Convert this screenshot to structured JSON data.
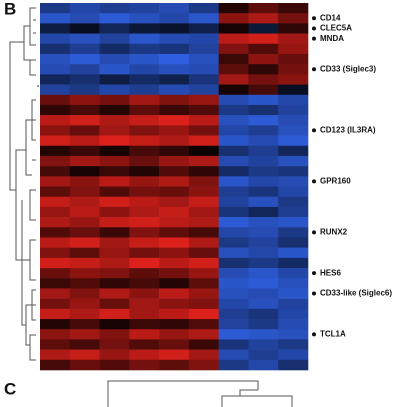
{
  "chart_data": {
    "type": "heatmap",
    "panel_labels": [
      "B",
      "C"
    ],
    "categories": [
      null,
      "CD14",
      "CLEC5A",
      "MNDA",
      null,
      null,
      "CD33 (Siglec3)",
      null,
      null,
      null,
      null,
      null,
      "CD123 (IL3RA)",
      null,
      null,
      null,
      null,
      "GPR160",
      null,
      null,
      null,
      null,
      "RUNX2",
      null,
      null,
      null,
      "HES6",
      null,
      "CD33-like (Siglec6)",
      null,
      null,
      null,
      "TCL1A",
      null,
      null,
      null
    ],
    "colorscale": [
      "#2f5fe0",
      "#000000",
      "#e8221c"
    ],
    "zlim": [
      -2,
      2
    ],
    "values": [
      [
        -1.2,
        -1.5,
        -1.3,
        -1.4,
        -1.6,
        -1.2,
        0.3,
        0.8,
        0.5
      ],
      [
        -1.8,
        -1.6,
        -1.9,
        -1.7,
        -1.5,
        -1.8,
        1.2,
        1.5,
        1.0
      ],
      [
        -0.6,
        -0.3,
        -0.8,
        -0.5,
        -0.4,
        -0.7,
        0.2,
        -0.5,
        0.4
      ],
      [
        -1.5,
        -1.7,
        -1.4,
        -1.8,
        -1.6,
        -1.5,
        1.6,
        1.8,
        1.4
      ],
      [
        -1.0,
        -1.3,
        -0.9,
        -1.2,
        -1.1,
        -1.4,
        1.1,
        0.7,
        1.3
      ],
      [
        -1.7,
        -1.9,
        -1.6,
        -1.8,
        -2.0,
        -1.7,
        0.5,
        1.2,
        0.9
      ],
      [
        -1.6,
        -1.4,
        -1.8,
        -1.5,
        -1.7,
        -1.6,
        0.8,
        0.4,
        1.0
      ],
      [
        -0.8,
        -1.0,
        -0.6,
        -0.9,
        -0.7,
        -1.1,
        1.4,
        1.0,
        1.2
      ],
      [
        -1.4,
        -1.2,
        -1.5,
        -1.3,
        -1.6,
        -1.4,
        0.2,
        0.6,
        -0.3
      ],
      [
        0.9,
        1.2,
        1.0,
        1.4,
        1.1,
        1.3,
        -1.6,
        -1.8,
        -1.5
      ],
      [
        0.4,
        0.6,
        0.3,
        0.8,
        0.5,
        0.7,
        -1.2,
        -1.0,
        -1.4
      ],
      [
        1.6,
        1.8,
        1.5,
        1.7,
        1.9,
        1.6,
        -1.7,
        -1.9,
        -1.6
      ],
      [
        1.2,
        0.9,
        1.4,
        1.1,
        1.3,
        1.0,
        -1.5,
        -1.3,
        -1.7
      ],
      [
        1.8,
        1.6,
        1.9,
        1.7,
        1.5,
        1.8,
        -1.8,
        -1.6,
        -1.9
      ],
      [
        0.3,
        0.5,
        0.2,
        0.6,
        0.4,
        0.1,
        -1.0,
        -1.3,
        -0.8
      ],
      [
        1.1,
        1.4,
        1.2,
        0.9,
        1.3,
        1.5,
        -1.6,
        -1.4,
        -1.7
      ],
      [
        0.6,
        0.2,
        0.5,
        0.3,
        0.7,
        0.4,
        -0.9,
        -1.2,
        -1.1
      ],
      [
        1.4,
        1.2,
        1.6,
        1.3,
        1.5,
        1.1,
        -1.8,
        -1.5,
        -1.6
      ],
      [
        0.8,
        1.1,
        0.7,
        1.0,
        0.9,
        1.2,
        -1.3,
        -1.1,
        -1.5
      ],
      [
        1.7,
        1.5,
        1.8,
        1.6,
        1.4,
        1.7,
        -1.4,
        -1.7,
        -1.2
      ],
      [
        1.3,
        1.6,
        1.2,
        1.5,
        1.7,
        1.4,
        -1.1,
        -0.8,
        -1.3
      ],
      [
        1.5,
        1.3,
        1.7,
        1.8,
        1.6,
        1.5,
        -1.9,
        -1.7,
        -1.8
      ],
      [
        0.7,
        0.9,
        0.5,
        1.1,
        0.8,
        0.6,
        -1.5,
        -1.6,
        -1.2
      ],
      [
        1.6,
        1.8,
        1.4,
        1.7,
        1.9,
        1.5,
        -1.2,
        -1.4,
        -1.0
      ],
      [
        1.1,
        0.8,
        1.3,
        1.0,
        1.2,
        0.9,
        -1.7,
        -1.5,
        -1.8
      ],
      [
        1.8,
        1.7,
        1.5,
        1.9,
        1.6,
        1.8,
        -1.0,
        -1.2,
        -0.9
      ],
      [
        0.9,
        1.2,
        1.1,
        0.8,
        1.0,
        1.3,
        -1.6,
        -1.8,
        -1.5
      ],
      [
        0.5,
        0.7,
        0.4,
        0.6,
        0.3,
        0.8,
        -1.8,
        -1.9,
        -1.7
      ],
      [
        1.4,
        1.1,
        1.5,
        1.2,
        1.6,
        1.3,
        -1.7,
        -1.6,
        -1.8
      ],
      [
        1.0,
        1.3,
        0.9,
        1.4,
        1.2,
        1.1,
        -1.5,
        -1.7,
        -1.4
      ],
      [
        1.7,
        1.5,
        1.8,
        1.4,
        1.6,
        1.9,
        -1.3,
        -1.1,
        -1.5
      ],
      [
        0.3,
        0.6,
        0.2,
        0.5,
        0.4,
        0.7,
        -1.4,
        -1.2,
        -1.6
      ],
      [
        1.2,
        1.4,
        1.1,
        1.6,
        1.3,
        1.5,
        -1.9,
        -1.8,
        -1.7
      ],
      [
        0.8,
        0.6,
        1.0,
        0.7,
        0.9,
        0.5,
        -1.1,
        -1.4,
        -1.2
      ],
      [
        1.5,
        1.7,
        1.3,
        1.6,
        1.8,
        1.4,
        -1.6,
        -1.3,
        -1.5
      ],
      [
        0.6,
        0.9,
        0.7,
        1.0,
        0.8,
        1.1,
        -1.2,
        -1.5,
        -1.0
      ]
    ]
  }
}
